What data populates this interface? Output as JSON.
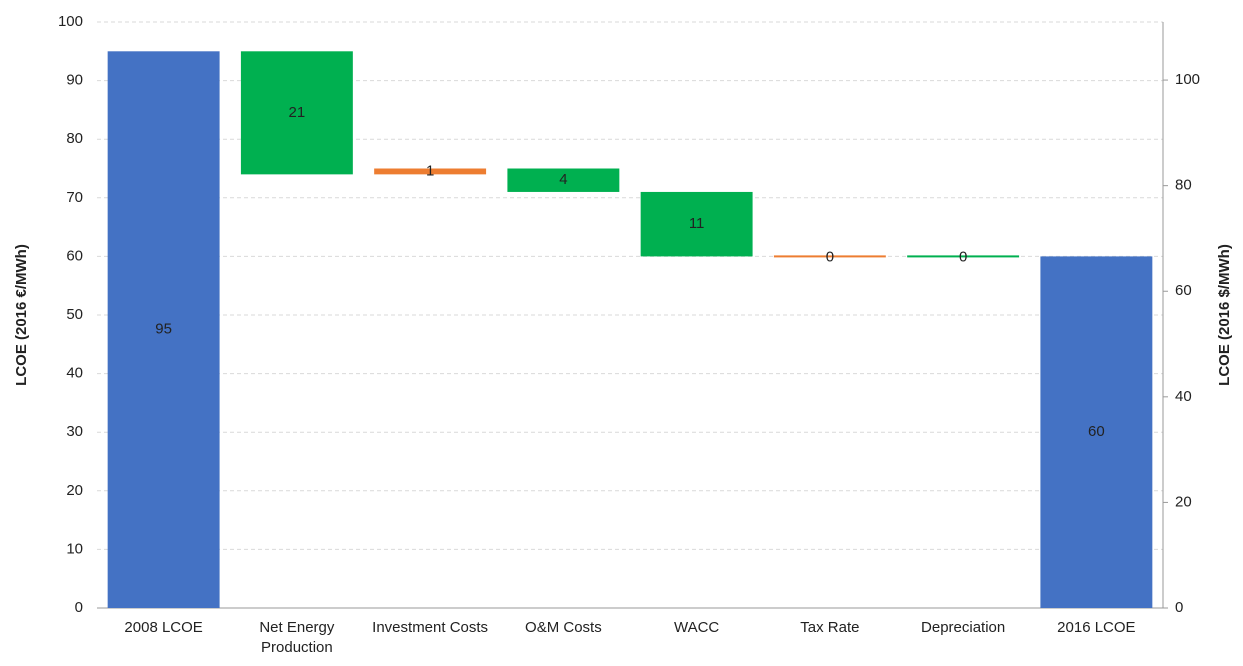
{
  "chart_data": {
    "type": "waterfall",
    "categories": [
      "2008 LCOE",
      "Net Energy Production",
      "Investment Costs",
      "O&M Costs",
      "WACC",
      "Tax Rate",
      "Depreciation",
      "2016 LCOE"
    ],
    "measure": [
      "total",
      "relative",
      "relative",
      "relative",
      "relative",
      "relative",
      "relative",
      "total"
    ],
    "values": [
      95,
      -21,
      1,
      -4,
      -11,
      0,
      0,
      60
    ],
    "value_labels": [
      "95",
      "21",
      "1",
      "4",
      "11",
      "0",
      "0",
      "60"
    ],
    "colors": [
      "#4472c4",
      "#00b050",
      "#ed7d31",
      "#00b050",
      "#00b050",
      "#ed7d31",
      "#00b050",
      "#4472c4"
    ],
    "ylabel": "LCOE (2016 €/MWh)",
    "y2label": "LCOE (2016 $/MWh)",
    "ylim": [
      0,
      100
    ],
    "yticks": [
      0,
      10,
      20,
      30,
      40,
      50,
      60,
      70,
      80,
      90,
      100
    ],
    "y2lim": [
      0,
      111
    ],
    "y2ticks": [
      0,
      20,
      40,
      60,
      80,
      100
    ],
    "grid": true
  }
}
